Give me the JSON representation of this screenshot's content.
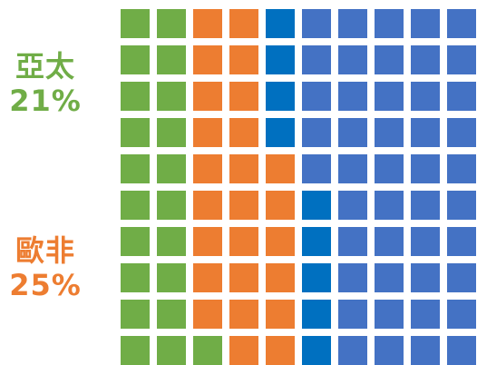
{
  "chart_data": {
    "type": "waffle",
    "grid": {
      "rows": 10,
      "cols": 10
    },
    "segments": [
      {
        "name": "亞太",
        "percent": 21,
        "color": "#70AD47"
      },
      {
        "name": "歐非",
        "percent": 25,
        "color": "#ED7D31"
      },
      {
        "name": "",
        "percent": 9,
        "color": "#0070C0"
      },
      {
        "name": "",
        "percent": 45,
        "color": "#4472C4"
      }
    ],
    "labels": [
      {
        "name": "亞太",
        "value": "21%",
        "color": "#70AD47"
      },
      {
        "name": "歐非",
        "value": "25%",
        "color": "#ED7D31"
      }
    ]
  }
}
